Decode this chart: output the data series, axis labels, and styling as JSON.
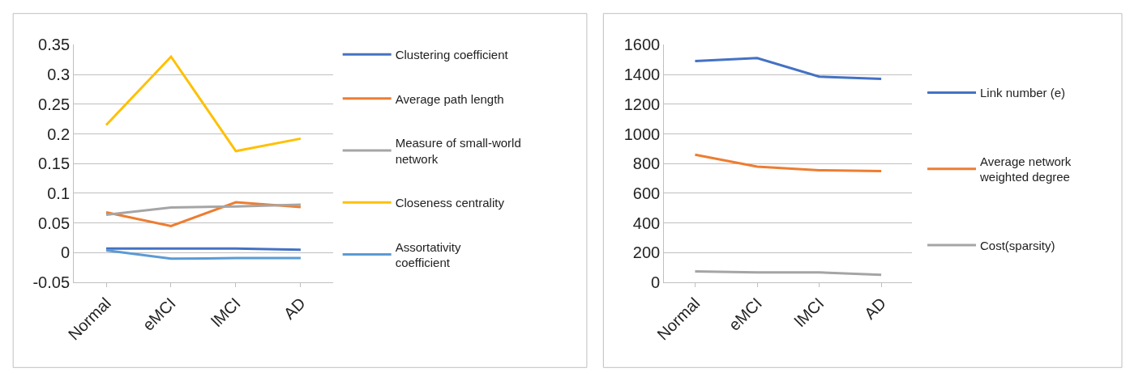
{
  "chart_data": [
    {
      "type": "line",
      "categories": [
        "Normal",
        "eMCI",
        "lMCI",
        "AD"
      ],
      "ylim": [
        -0.05,
        0.35
      ],
      "yticks": [
        -0.05,
        0,
        0.05,
        0.1,
        0.15,
        0.2,
        0.25,
        0.3,
        0.35
      ],
      "grid": "y",
      "legend": "right",
      "marker": "none",
      "line_style": "solid",
      "series": [
        {
          "name": "Clustering coefficient",
          "color": "#4472c4",
          "values": [
            0.007,
            0.007,
            0.007,
            0.005
          ]
        },
        {
          "name": "Average path length",
          "color": "#ed7d31",
          "values": [
            0.068,
            0.045,
            0.085,
            0.077
          ]
        },
        {
          "name": "Measure of small-world network",
          "color": "#a5a5a5",
          "values": [
            0.064,
            0.076,
            0.078,
            0.081
          ]
        },
        {
          "name": "Closeness centrality",
          "color": "#ffc000",
          "values": [
            0.215,
            0.33,
            0.171,
            0.192
          ]
        },
        {
          "name": "Assortativity coefficient",
          "color": "#5b9bd5",
          "values": [
            0.004,
            -0.01,
            -0.009,
            -0.009
          ]
        }
      ]
    },
    {
      "type": "line",
      "categories": [
        "Normal",
        "eMCI",
        "lMCI",
        "AD"
      ],
      "ylim": [
        0,
        1600
      ],
      "yticks": [
        0,
        200,
        400,
        600,
        800,
        1000,
        1200,
        1400,
        1600
      ],
      "grid": "y",
      "legend": "right",
      "marker": "none",
      "line_style": "solid",
      "series": [
        {
          "name": "Link number (e)",
          "color": "#4472c4",
          "values": [
            1490,
            1510,
            1385,
            1370
          ]
        },
        {
          "name": "Average network weighted degree",
          "color": "#ed7d31",
          "values": [
            860,
            780,
            755,
            750
          ]
        },
        {
          "name": "Cost(sparsity)",
          "color": "#a5a5a5",
          "values": [
            75,
            68,
            68,
            52
          ]
        }
      ]
    }
  ]
}
